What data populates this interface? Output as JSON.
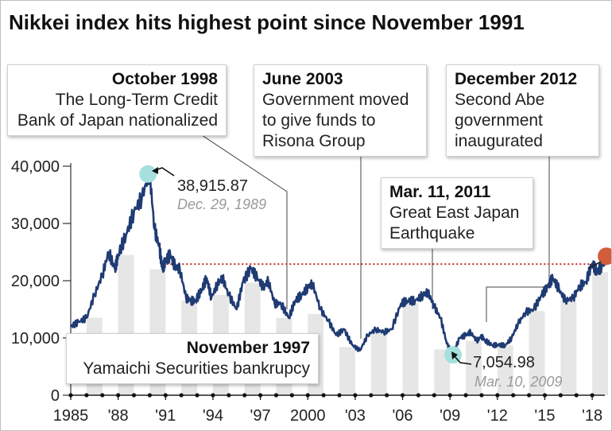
{
  "title": "Nikkei index hits highest point since November 1991",
  "colors": {
    "line": "#1f3b73",
    "bars": "#e6e6e6",
    "peak_marker": "#a6e0dc",
    "current_marker": "#d35d3a",
    "ref_line": "#c62828"
  },
  "annotations": {
    "oct1998": {
      "heading": "October 1998",
      "lines": [
        "The Long-Term Credit",
        "Bank of Japan nationalized"
      ]
    },
    "jun2003": {
      "heading": "June 2003",
      "lines": [
        "Government moved",
        "to give funds to",
        "Risona Group"
      ]
    },
    "dec2012": {
      "heading": "December 2012",
      "lines": [
        "Second Abe",
        "government",
        "inaugurated"
      ]
    },
    "mar2011": {
      "heading": "Mar. 11, 2011",
      "lines": [
        "Great East Japan",
        "Earthquake"
      ]
    },
    "nov1997": {
      "heading": "November 1997",
      "lines": [
        "Yamaichi Securities bankrupcy"
      ]
    }
  },
  "peak": {
    "value": "38,915.87",
    "date": "Dec. 29, 1989"
  },
  "trough": {
    "value": "7,054.98",
    "date": "Mar. 10, 2009"
  },
  "chart_data": {
    "type": "line",
    "title": "Nikkei index hits highest point since November 1991",
    "ylim": [
      0,
      40000
    ],
    "yticks": [
      0,
      10000,
      20000,
      30000,
      40000
    ],
    "ytick_labels": [
      "0",
      "10,000",
      "20,000",
      "30,000",
      "40,000"
    ],
    "xlim": [
      1985,
      2019
    ],
    "xticks": [
      1985,
      1988,
      1991,
      1994,
      1997,
      2000,
      2003,
      2006,
      2009,
      2012,
      2015,
      2018
    ],
    "xtick_labels": [
      "1985",
      "'88",
      "'91",
      "'94",
      "'97",
      "2000",
      "'03",
      "'06",
      "'09",
      "'12",
      "'15",
      "'18"
    ],
    "reference_line": 22900,
    "series": [
      {
        "x": [
          1985.0,
          1985.5,
          1986.0,
          1986.5,
          1987.0,
          1987.4,
          1987.8,
          1988.0,
          1988.5,
          1989.0,
          1989.5,
          1989.99,
          1990.3,
          1990.6,
          1990.8,
          1991.0,
          1991.3,
          1991.6,
          1991.9,
          1992.3,
          1992.6,
          1992.9,
          1993.3,
          1993.6,
          1993.9,
          1994.3,
          1994.6,
          1995.0,
          1995.5,
          1995.9,
          1996.4,
          1996.8,
          1997.2,
          1997.5,
          1997.9,
          1998.3,
          1998.8,
          1999.2,
          1999.6,
          2000.0,
          2000.3,
          2000.8,
          2001.3,
          2001.8,
          2002.3,
          2002.8,
          2003.3,
          2003.8,
          2004.3,
          2004.8,
          2005.3,
          2005.9,
          2006.3,
          2006.8,
          2007.3,
          2007.6,
          2008.0,
          2008.4,
          2008.8,
          2009.19,
          2009.6,
          2010.0,
          2010.3,
          2010.7,
          2011.0,
          2011.2,
          2011.7,
          2012.0,
          2012.5,
          2012.9,
          2013.3,
          2013.8,
          2014.3,
          2014.8,
          2015.2,
          2015.5,
          2015.9,
          2016.3,
          2016.8,
          2017.2,
          2017.6,
          2018.0,
          2018.3,
          2018.6,
          2018.8
        ],
        "values": [
          12000,
          12800,
          13500,
          17500,
          21000,
          25000,
          22000,
          24500,
          28000,
          32000,
          34500,
          38915.87,
          29000,
          26000,
          22000,
          23500,
          24500,
          22500,
          22000,
          17000,
          16500,
          16500,
          18500,
          20500,
          17000,
          19500,
          20500,
          17500,
          15000,
          19800,
          22200,
          20500,
          18800,
          20000,
          16000,
          16000,
          13500,
          16500,
          17500,
          18800,
          19500,
          15000,
          13000,
          10500,
          11500,
          8800,
          7800,
          10500,
          11500,
          11000,
          11500,
          16000,
          16500,
          16500,
          17500,
          18000,
          15500,
          13500,
          9000,
          7054.98,
          10000,
          10500,
          11000,
          9500,
          10300,
          9600,
          8700,
          8800,
          8700,
          10000,
          12500,
          14500,
          15000,
          17500,
          19000,
          20500,
          18500,
          16500,
          17000,
          19000,
          19800,
          23000,
          21500,
          22500,
          24000
        ]
      }
    ]
  }
}
